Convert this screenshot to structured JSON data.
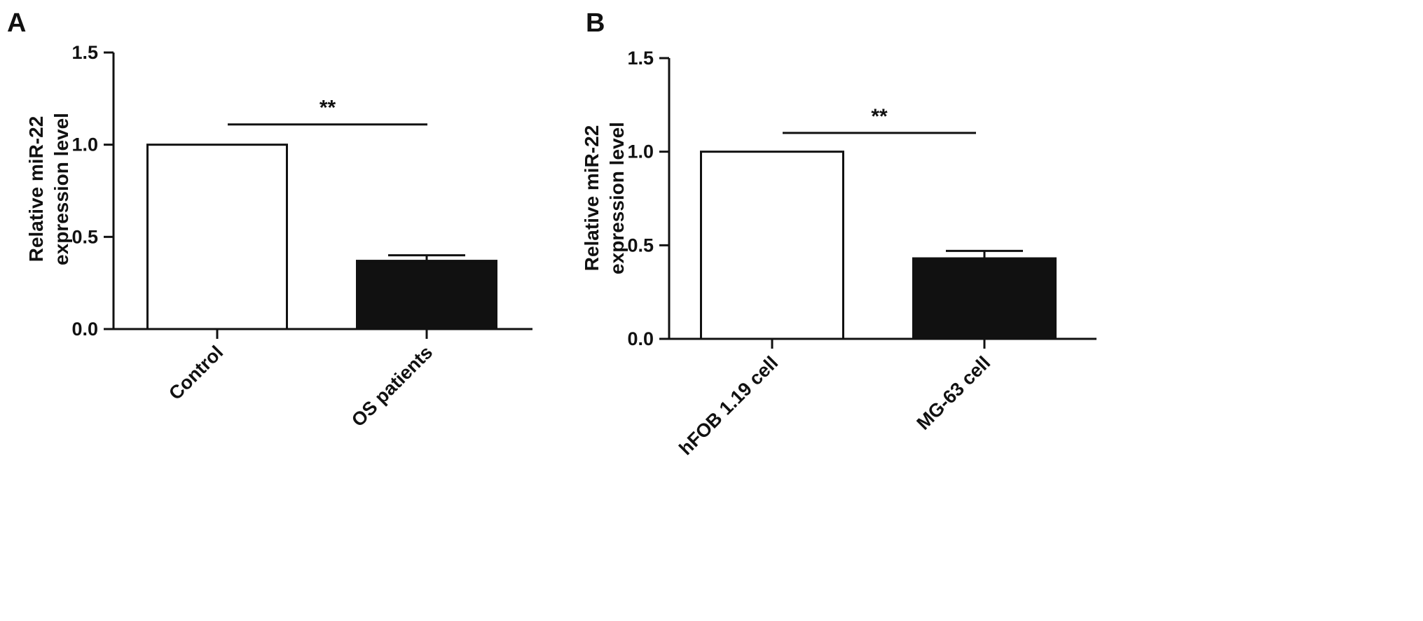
{
  "figure": {
    "colors": {
      "axis": "#111111",
      "bar_white": "#ffffff",
      "bar_black": "#111111"
    }
  },
  "chart_data": [
    {
      "panel": "A",
      "type": "bar",
      "ylabel_line1": "Relative miR-22",
      "ylabel_line2": "expression level",
      "ylim": [
        0,
        1.5
      ],
      "yticks": [
        0.0,
        0.5,
        1.0,
        1.5
      ],
      "ytick_labels": [
        "0.0",
        "0.5",
        "1.0",
        "1.5"
      ],
      "categories": [
        "Control",
        "OS patients"
      ],
      "values": [
        1.0,
        0.37
      ],
      "errors": [
        0,
        0.03
      ],
      "bar_colors": [
        "#ffffff",
        "#111111"
      ],
      "significance": "**",
      "significance_y": 1.11
    },
    {
      "panel": "B",
      "type": "bar",
      "ylabel_line1": "Relative miR-22",
      "ylabel_line2": "expression level",
      "ylim": [
        0,
        1.5
      ],
      "yticks": [
        0.0,
        0.5,
        1.0,
        1.5
      ],
      "ytick_labels": [
        "0.0",
        "0.5",
        "1.0",
        "1.5"
      ],
      "categories": [
        "hFOB 1.19 cell",
        "MG-63 cell"
      ],
      "values": [
        1.0,
        0.43
      ],
      "errors": [
        0,
        0.04
      ],
      "bar_colors": [
        "#ffffff",
        "#111111"
      ],
      "significance": "**",
      "significance_y": 1.1
    }
  ]
}
